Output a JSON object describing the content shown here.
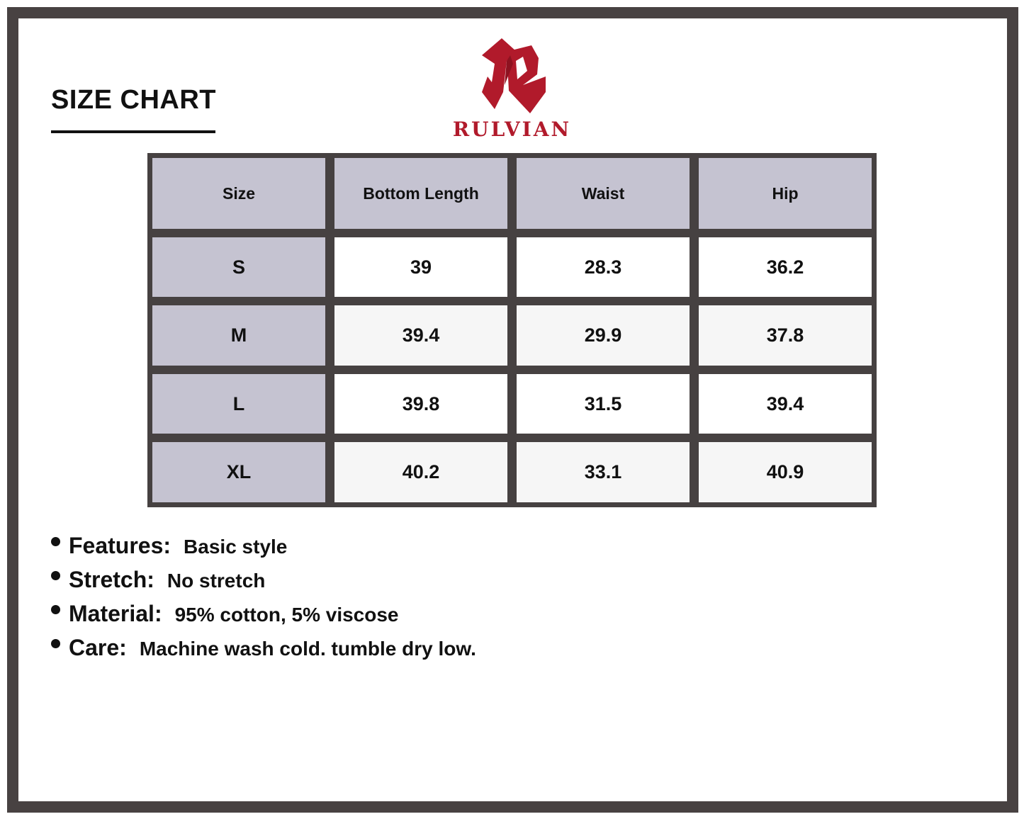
{
  "title": "SIZE CHART",
  "brand": {
    "name": "RULVIAN",
    "color": "#b11a2b"
  },
  "table": {
    "headers": [
      "Size",
      "Bottom Length",
      "Waist",
      "Hip"
    ],
    "rows": [
      [
        "S",
        "39",
        "28.3",
        "36.2"
      ],
      [
        "M",
        "39.4",
        "29.9",
        "37.8"
      ],
      [
        "L",
        "39.8",
        "31.5",
        "39.4"
      ],
      [
        "XL",
        "40.2",
        "33.1",
        "40.9"
      ]
    ]
  },
  "features": [
    {
      "label": "Features:",
      "value": "Basic style"
    },
    {
      "label": "Stretch:",
      "value": "No stretch"
    },
    {
      "label": "Material:",
      "value": "95% cotton, 5% viscose"
    },
    {
      "label": "Care:",
      "value": "Machine wash cold. tumble dry low."
    }
  ]
}
